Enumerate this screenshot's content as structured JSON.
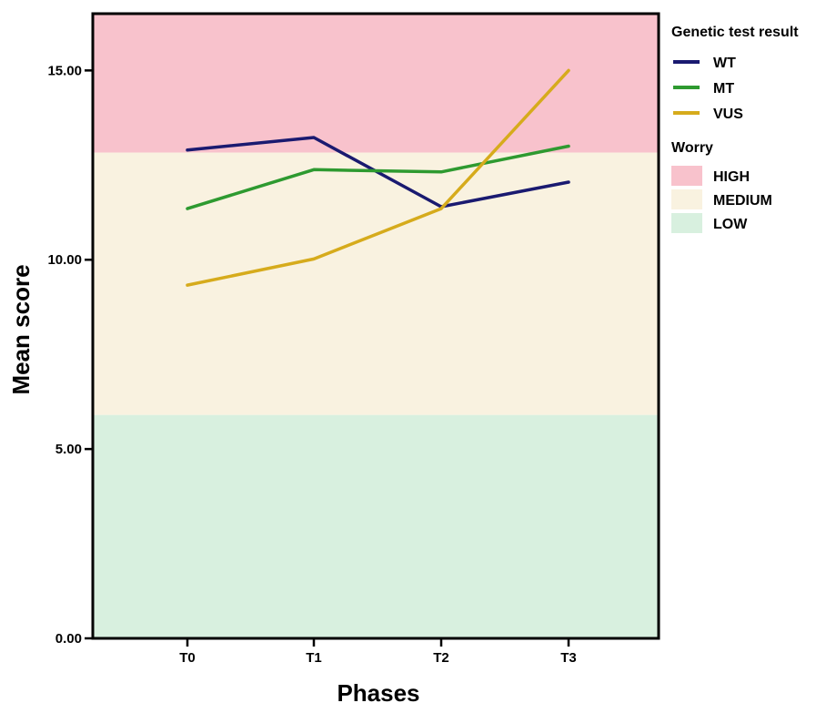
{
  "chart_data": {
    "type": "line",
    "xlabel": "Phases",
    "ylabel": "Mean score",
    "categories": [
      "T0",
      "T1",
      "T2",
      "T3"
    ],
    "ylim": [
      0,
      16.5
    ],
    "y_ticks": [
      0,
      5,
      10,
      15
    ],
    "y_tick_labels": [
      "0.00",
      "5.00",
      "10.00",
      "15.00"
    ],
    "series": [
      {
        "name": "WT",
        "color": "#1a1a70",
        "values": [
          12.9,
          13.23,
          11.4,
          12.05
        ]
      },
      {
        "name": "MT",
        "color": "#2e9a30",
        "values": [
          11.35,
          12.38,
          12.32,
          13.0
        ]
      },
      {
        "name": "VUS",
        "color": "#d6ab1c",
        "values": [
          9.33,
          10.02,
          11.35,
          15.0
        ]
      }
    ],
    "bands": [
      {
        "name": "HIGH",
        "color": "#f8c2cc",
        "from": 12.83,
        "to": 16.5
      },
      {
        "name": "MEDIUM",
        "color": "#f9f2e0",
        "from": 5.9,
        "to": 12.83
      },
      {
        "name": "LOW",
        "color": "#d8f0df",
        "from": 0,
        "to": 5.9
      }
    ],
    "legend": {
      "placement": "right",
      "series_title": "Genetic test result",
      "bands_title": "Worry"
    },
    "grid": false
  }
}
